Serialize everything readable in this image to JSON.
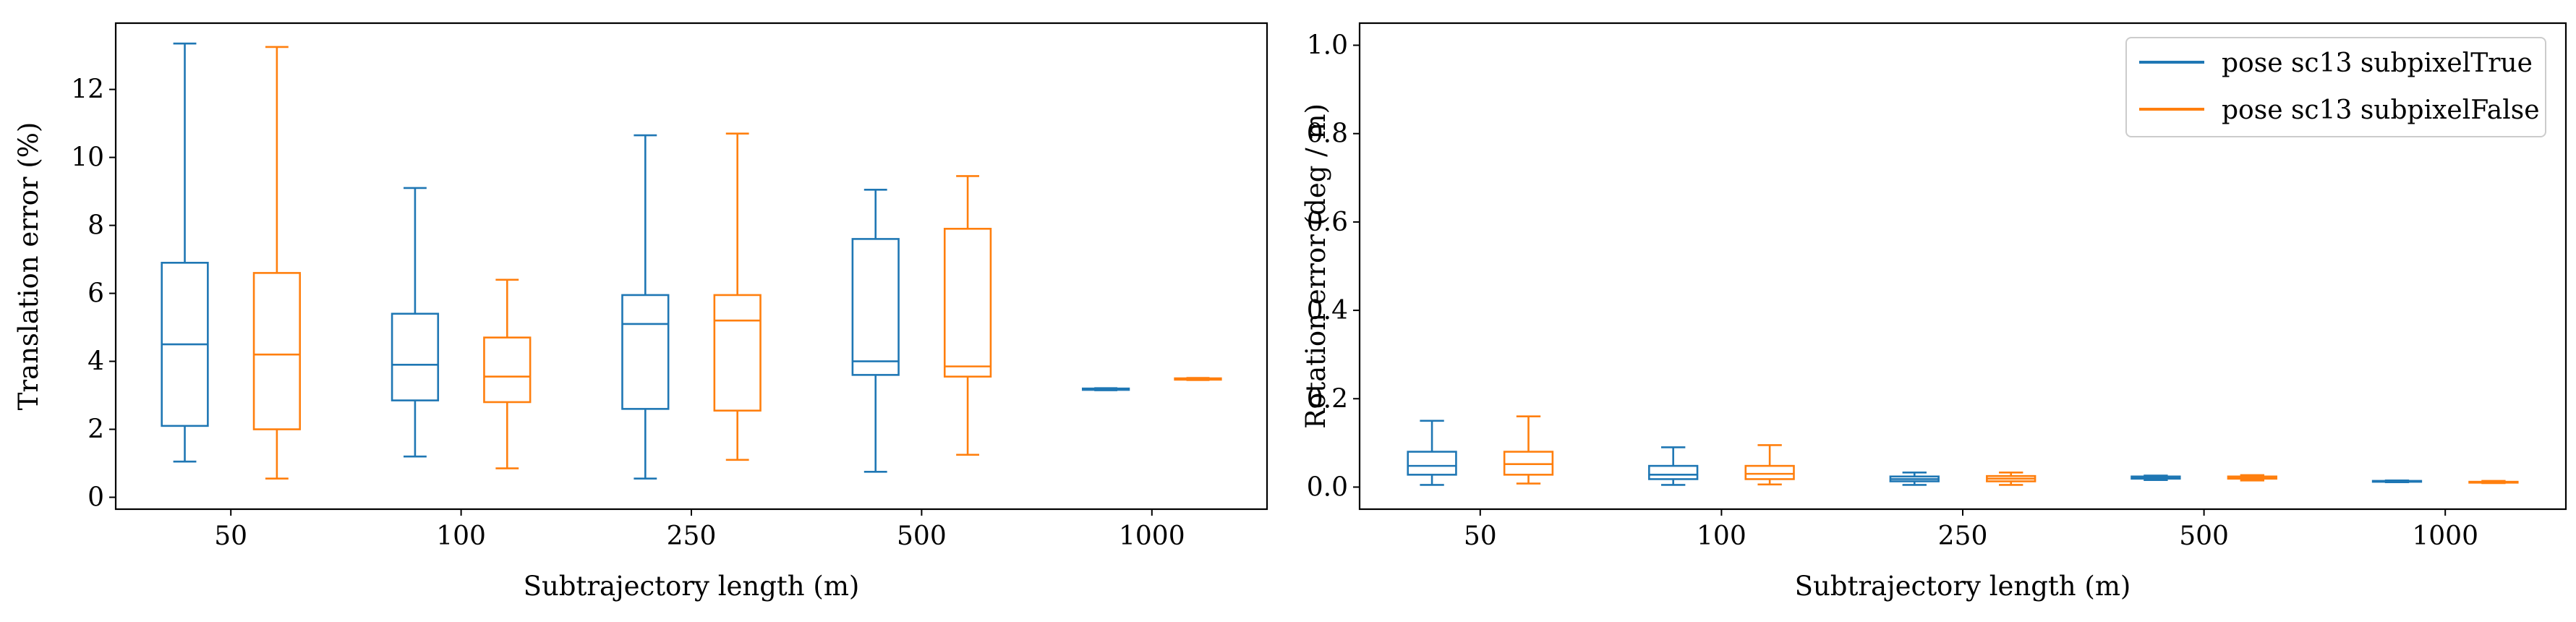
{
  "colors": {
    "true_series": "#1f77b4",
    "false_series": "#ff7f0e",
    "axes": "#000000",
    "background": "#ffffff"
  },
  "chart_data": [
    {
      "type": "box",
      "xlabel": "Subtrajectory length (m)",
      "ylabel": "Translation error (%)",
      "categories": [
        "50",
        "100",
        "250",
        "500",
        "1000"
      ],
      "ylim": [
        -0.35,
        13.95
      ],
      "yticks": [
        0,
        2,
        4,
        6,
        8,
        10,
        12
      ],
      "ytick_labels": [
        "0",
        "2",
        "4",
        "6",
        "8",
        "10",
        "12"
      ],
      "grid": false,
      "series": [
        {
          "name": "pose sc13 subpixelTrue",
          "color": "#1f77b4",
          "boxes": [
            {
              "whislo": 1.05,
              "q1": 2.1,
              "med": 4.5,
              "q3": 6.9,
              "whishi": 13.35
            },
            {
              "whislo": 1.2,
              "q1": 2.85,
              "med": 3.9,
              "q3": 5.4,
              "whishi": 9.1
            },
            {
              "whislo": 0.55,
              "q1": 2.6,
              "med": 5.1,
              "q3": 5.95,
              "whishi": 10.65
            },
            {
              "whislo": 0.75,
              "q1": 3.6,
              "med": 4.0,
              "q3": 7.6,
              "whishi": 9.05
            },
            {
              "whislo": 3.15,
              "q1": 3.16,
              "med": 3.18,
              "q3": 3.2,
              "whishi": 3.21
            }
          ]
        },
        {
          "name": "pose sc13 subpixelFalse",
          "color": "#ff7f0e",
          "boxes": [
            {
              "whislo": 0.55,
              "q1": 2.0,
              "med": 4.2,
              "q3": 6.6,
              "whishi": 13.25
            },
            {
              "whislo": 0.85,
              "q1": 2.8,
              "med": 3.55,
              "q3": 4.7,
              "whishi": 6.4
            },
            {
              "whislo": 1.1,
              "q1": 2.55,
              "med": 5.2,
              "q3": 5.95,
              "whishi": 10.7
            },
            {
              "whislo": 1.25,
              "q1": 3.55,
              "med": 3.85,
              "q3": 7.9,
              "whishi": 9.45
            },
            {
              "whislo": 3.45,
              "q1": 3.46,
              "med": 3.48,
              "q3": 3.5,
              "whishi": 3.51
            }
          ]
        }
      ]
    },
    {
      "type": "box",
      "xlabel": "Subtrajectory length (m)",
      "ylabel": "Rotation error (deg / m)",
      "categories": [
        "50",
        "100",
        "250",
        "500",
        "1000"
      ],
      "ylim": [
        -0.05,
        1.05
      ],
      "yticks": [
        0.0,
        0.2,
        0.4,
        0.6,
        0.8,
        1.0
      ],
      "ytick_labels": [
        "0.0",
        "0.2",
        "0.4",
        "0.6",
        "0.8",
        "1.0"
      ],
      "grid": false,
      "legend": {
        "position": "top-right",
        "entries": [
          {
            "label": "pose sc13 subpixelTrue",
            "color": "#1f77b4"
          },
          {
            "label": "pose sc13 subpixelFalse",
            "color": "#ff7f0e"
          }
        ]
      },
      "series": [
        {
          "name": "pose sc13 subpixelTrue",
          "color": "#1f77b4",
          "boxes": [
            {
              "whislo": 0.005,
              "q1": 0.028,
              "med": 0.048,
              "q3": 0.08,
              "whishi": 0.15
            },
            {
              "whislo": 0.005,
              "q1": 0.018,
              "med": 0.028,
              "q3": 0.048,
              "whishi": 0.09
            },
            {
              "whislo": 0.005,
              "q1": 0.013,
              "med": 0.018,
              "q3": 0.024,
              "whishi": 0.033
            },
            {
              "whislo": 0.016,
              "q1": 0.019,
              "med": 0.021,
              "q3": 0.024,
              "whishi": 0.026
            },
            {
              "whislo": 0.011,
              "q1": 0.012,
              "med": 0.013,
              "q3": 0.014,
              "whishi": 0.015
            }
          ]
        },
        {
          "name": "pose sc13 subpixelFalse",
          "color": "#ff7f0e",
          "boxes": [
            {
              "whislo": 0.008,
              "q1": 0.028,
              "med": 0.052,
              "q3": 0.08,
              "whishi": 0.16
            },
            {
              "whislo": 0.006,
              "q1": 0.018,
              "med": 0.03,
              "q3": 0.048,
              "whishi": 0.095
            },
            {
              "whislo": 0.005,
              "q1": 0.013,
              "med": 0.019,
              "q3": 0.025,
              "whishi": 0.033
            },
            {
              "whislo": 0.015,
              "q1": 0.019,
              "med": 0.021,
              "q3": 0.024,
              "whishi": 0.027
            },
            {
              "whislo": 0.009,
              "q1": 0.01,
              "med": 0.011,
              "q3": 0.012,
              "whishi": 0.014
            }
          ]
        }
      ]
    }
  ]
}
